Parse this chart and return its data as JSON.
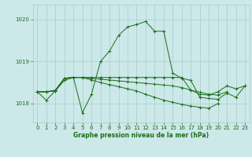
{
  "title": "Graphe pression niveau de la mer (hPa)",
  "bg_color": "#cce8e8",
  "grid_color": "#aacccc",
  "line_color": "#1a6e1a",
  "marker_color": "#1a6e1a",
  "xlim": [
    -0.5,
    23.5
  ],
  "ylim": [
    1017.55,
    1020.35
  ],
  "yticks": [
    1018,
    1019,
    1020
  ],
  "xticks": [
    0,
    1,
    2,
    3,
    4,
    5,
    6,
    7,
    8,
    9,
    10,
    11,
    12,
    13,
    14,
    15,
    16,
    17,
    18,
    19,
    20,
    21,
    22,
    23
  ],
  "series": [
    {
      "x": [
        0,
        1,
        2,
        3,
        4,
        5,
        6,
        7,
        8,
        9,
        10,
        11,
        12,
        13,
        14,
        15,
        16,
        17,
        18,
        19,
        20,
        21,
        22,
        23
      ],
      "y": [
        1018.28,
        1018.08,
        1018.3,
        1018.55,
        1018.62,
        1017.78,
        1018.22,
        1019.0,
        1019.25,
        1019.62,
        1019.82,
        1019.88,
        1019.95,
        1019.72,
        1019.72,
        1018.72,
        1018.6,
        1018.55,
        1018.15,
        1018.12,
        1018.1,
        1018.25,
        1018.15,
        1018.42
      ]
    },
    {
      "x": [
        0,
        1,
        2,
        3,
        4,
        5,
        6,
        7,
        8,
        9,
        10,
        11,
        12,
        13,
        14,
        15,
        16,
        17,
        18,
        19,
        20,
        21
      ],
      "y": [
        1018.28,
        1018.28,
        1018.3,
        1018.6,
        1018.62,
        1018.62,
        1018.6,
        1018.58,
        1018.56,
        1018.54,
        1018.52,
        1018.5,
        1018.48,
        1018.46,
        1018.44,
        1018.42,
        1018.38,
        1018.32,
        1018.27,
        1018.22,
        1018.2,
        1018.28
      ]
    },
    {
      "x": [
        0,
        1,
        2,
        3,
        4,
        5,
        6,
        7,
        8,
        9,
        10,
        11,
        12,
        13,
        14,
        15,
        16,
        17,
        18,
        19,
        20
      ],
      "y": [
        1018.28,
        1018.28,
        1018.32,
        1018.6,
        1018.62,
        1018.62,
        1018.56,
        1018.5,
        1018.45,
        1018.4,
        1018.35,
        1018.3,
        1018.22,
        1018.15,
        1018.08,
        1018.03,
        1017.98,
        1017.94,
        1017.91,
        1017.89,
        1018.0
      ]
    },
    {
      "x": [
        0,
        1,
        2,
        3,
        4,
        5,
        6,
        7,
        8,
        9,
        10,
        11,
        12,
        13,
        14,
        15,
        16,
        17,
        18,
        19,
        20,
        21,
        22,
        23
      ],
      "y": [
        1018.28,
        1018.28,
        1018.3,
        1018.6,
        1018.62,
        1018.62,
        1018.62,
        1018.62,
        1018.62,
        1018.62,
        1018.62,
        1018.62,
        1018.62,
        1018.62,
        1018.62,
        1018.62,
        1018.62,
        1018.32,
        1018.22,
        1018.2,
        1018.28,
        1018.42,
        1018.35,
        1018.42
      ]
    }
  ]
}
